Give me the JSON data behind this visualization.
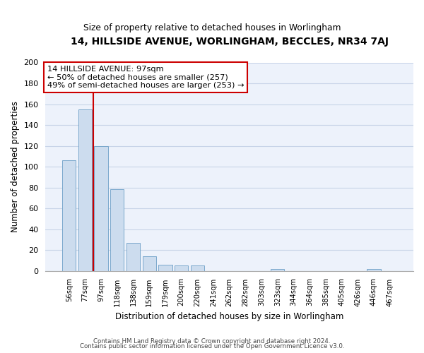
{
  "title1": "14, HILLSIDE AVENUE, WORLINGHAM, BECCLES, NR34 7AJ",
  "title2": "Size of property relative to detached houses in Worlingham",
  "xlabel": "Distribution of detached houses by size in Worlingham",
  "ylabel": "Number of detached properties",
  "bar_labels": [
    "56sqm",
    "77sqm",
    "97sqm",
    "118sqm",
    "138sqm",
    "159sqm",
    "179sqm",
    "200sqm",
    "220sqm",
    "241sqm",
    "262sqm",
    "282sqm",
    "303sqm",
    "323sqm",
    "344sqm",
    "364sqm",
    "385sqm",
    "405sqm",
    "426sqm",
    "446sqm",
    "467sqm"
  ],
  "bar_values": [
    106,
    155,
    120,
    78,
    27,
    14,
    6,
    5,
    5,
    0,
    0,
    0,
    0,
    2,
    0,
    0,
    0,
    0,
    0,
    2,
    0
  ],
  "bar_color": "#ccdcee",
  "bar_edge_color": "#7aa8cc",
  "highlight_color": "#cc0000",
  "vline_bar_index": 2,
  "annotation_title": "14 HILLSIDE AVENUE: 97sqm",
  "annotation_line1": "← 50% of detached houses are smaller (257)",
  "annotation_line2": "49% of semi-detached houses are larger (253) →",
  "ylim": [
    0,
    200
  ],
  "yticks": [
    0,
    20,
    40,
    60,
    80,
    100,
    120,
    140,
    160,
    180,
    200
  ],
  "footnote1": "Contains HM Land Registry data © Crown copyright and database right 2024.",
  "footnote2": "Contains public sector information licensed under the Open Government Licence v3.0.",
  "bg_color": "#edf2fb",
  "grid_color": "#c8d4e8"
}
